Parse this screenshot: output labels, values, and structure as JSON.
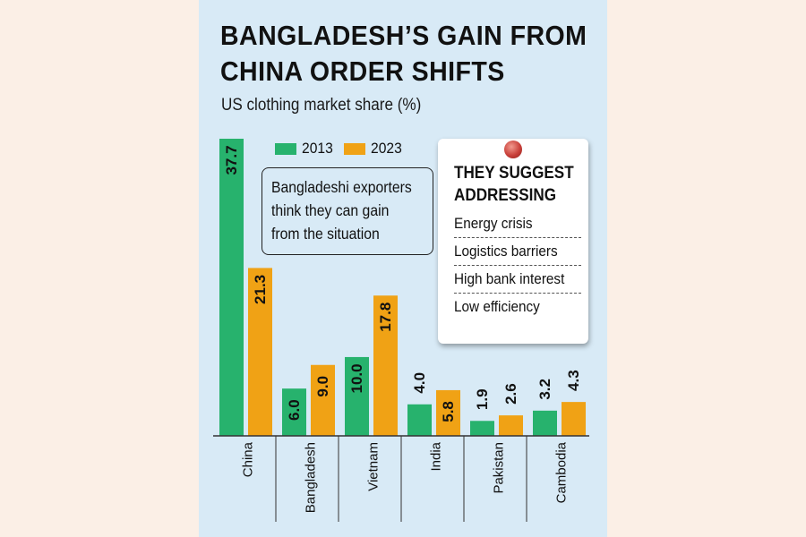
{
  "title_line1": "BANGLADESH’S GAIN FROM",
  "title_line2": "CHINA ORDER SHIFTS",
  "subtitle": "US clothing market share (%)",
  "callout": {
    "line1": "Bangladeshi exporters",
    "line2": "think they can gain",
    "line3": "from the situation"
  },
  "note": {
    "heading_line1": "THEY SUGGEST",
    "heading_line2": "ADDRESSING",
    "items": [
      "Energy crisis",
      "Logistics barriers",
      "High bank interest",
      "Low efficiency"
    ]
  },
  "colors": {
    "series_2013": "#27b26d",
    "series_2023": "#f0a215",
    "background": "#d8eaf6",
    "page": "#fbefe6"
  },
  "chart_data": {
    "type": "bar",
    "title": "BANGLADESH’S GAIN FROM CHINA ORDER SHIFTS",
    "subtitle": "US clothing market share (%)",
    "categories": [
      "China",
      "Bangladesh",
      "Vietnam",
      "India",
      "Pakistan",
      "Cambodia"
    ],
    "series": [
      {
        "name": "2013",
        "values": [
          37.7,
          6.0,
          10.0,
          4.0,
          1.9,
          3.2
        ],
        "labels": [
          "37.7",
          "6.0",
          "10.0",
          "4.0",
          "1.9",
          "3.2"
        ]
      },
      {
        "name": "2023",
        "values": [
          21.3,
          9.0,
          17.8,
          5.8,
          2.6,
          4.3
        ],
        "labels": [
          "21.3",
          "9.0",
          "17.8",
          "5.8",
          "2.6",
          "4.3"
        ]
      }
    ],
    "ylim": [
      0,
      37.7
    ],
    "legend": "top",
    "grid": false
  }
}
